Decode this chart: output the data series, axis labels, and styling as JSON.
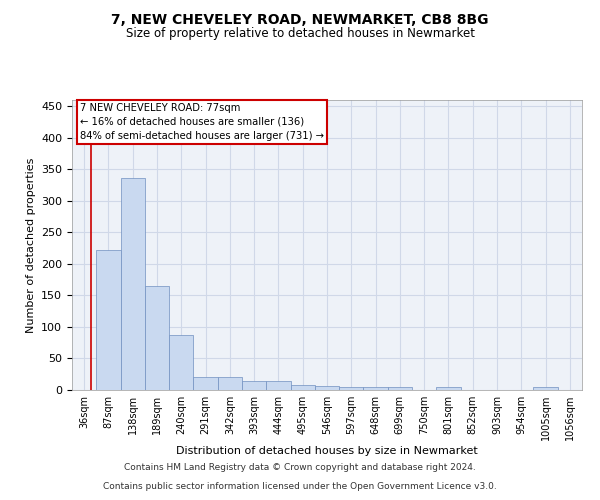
{
  "title": "7, NEW CHEVELEY ROAD, NEWMARKET, CB8 8BG",
  "subtitle": "Size of property relative to detached houses in Newmarket",
  "xlabel": "Distribution of detached houses by size in Newmarket",
  "ylabel": "Number of detached properties",
  "categories": [
    "36sqm",
    "87sqm",
    "138sqm",
    "189sqm",
    "240sqm",
    "291sqm",
    "342sqm",
    "393sqm",
    "444sqm",
    "495sqm",
    "546sqm",
    "597sqm",
    "648sqm",
    "699sqm",
    "750sqm",
    "801sqm",
    "852sqm",
    "903sqm",
    "954sqm",
    "1005sqm",
    "1056sqm"
  ],
  "values": [
    0,
    222,
    336,
    165,
    88,
    20,
    20,
    15,
    14,
    8,
    6,
    5,
    5,
    4,
    0,
    4,
    0,
    0,
    0,
    4,
    0
  ],
  "bar_color": "#c9d9f0",
  "bar_edgecolor": "#7090c0",
  "grid_color": "#d0d8e8",
  "background_color": "#eef2f8",
  "property_label": "7 NEW CHEVELEY ROAD: 77sqm",
  "pct_smaller": "16% of detached houses are smaller (136)",
  "pct_larger": "84% of semi-detached houses are larger (731)",
  "annotation_box_color": "#cc0000",
  "ylim": [
    0,
    460
  ],
  "yticks": [
    0,
    50,
    100,
    150,
    200,
    250,
    300,
    350,
    400,
    450
  ],
  "footer1": "Contains HM Land Registry data © Crown copyright and database right 2024.",
  "footer2": "Contains public sector information licensed under the Open Government Licence v3.0."
}
